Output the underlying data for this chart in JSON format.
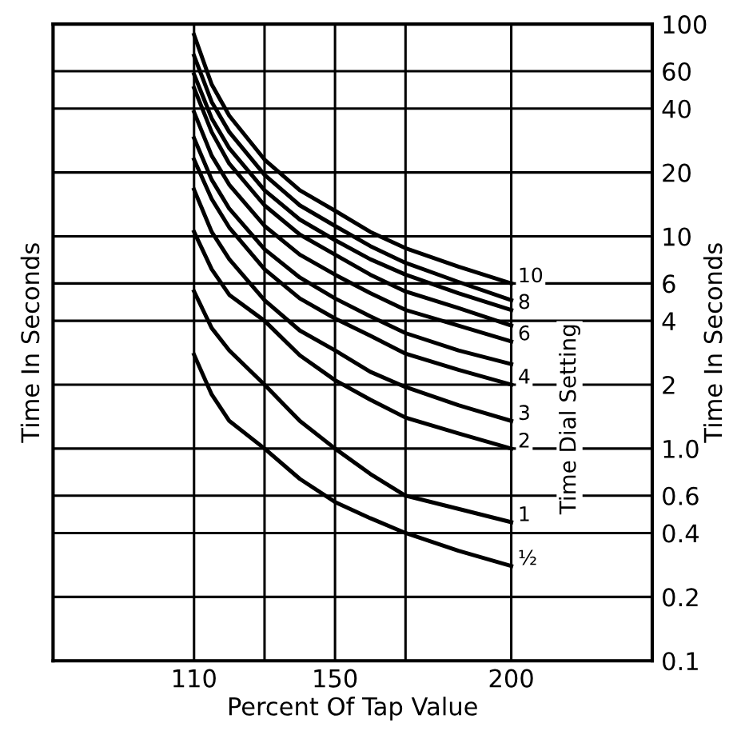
{
  "chart_data": {
    "type": "line",
    "xlabel": "Percent Of Tap Value",
    "ylabel": "Time In Seconds",
    "y2label": "Time In Seconds",
    "legend_title": "Time Dial Setting",
    "x": [
      110,
      115,
      120,
      130,
      140,
      150,
      160,
      170,
      185,
      200
    ],
    "xlim": [
      70,
      240
    ],
    "xticks": [
      110,
      {
        "value": 130,
        "label": null
      },
      150,
      {
        "value": 170,
        "label": null
      },
      200
    ],
    "log": "y",
    "ylim": [
      0.1,
      100
    ],
    "yticks": [
      0.1,
      0.2,
      0.4,
      0.6,
      {
        "value": 1,
        "label": "1.0"
      },
      2,
      4,
      6,
      10,
      20,
      40,
      60,
      100
    ],
    "grid": true,
    "marker": "none",
    "line_style": "solid",
    "series": [
      {
        "name": "10",
        "color": "#000000",
        "values": [
          89,
          52,
          37,
          23,
          16.5,
          13.2,
          10.5,
          8.8,
          7.2,
          6.0
        ]
      },
      {
        "color": "#000000",
        "values": [
          71,
          43,
          31,
          19.5,
          14,
          11.2,
          9,
          7.5,
          6.1,
          5.0
        ]
      },
      {
        "name": "8",
        "color": "#000000",
        "values": [
          58,
          36,
          26,
          16.5,
          12,
          9.6,
          7.8,
          6.6,
          5.4,
          4.5
        ]
      },
      {
        "color": "#000000",
        "values": [
          50,
          31,
          22,
          14,
          10.2,
          8.2,
          6.6,
          5.5,
          4.6,
          3.8
        ]
      },
      {
        "name": "6",
        "color": "#000000",
        "values": [
          38.5,
          24,
          17.5,
          11.2,
          8.2,
          6.6,
          5.4,
          4.5,
          3.8,
          3.2
        ]
      },
      {
        "color": "#000000",
        "values": [
          29,
          18.5,
          13.5,
          8.7,
          6.4,
          5.1,
          4.2,
          3.5,
          2.9,
          2.5
        ]
      },
      {
        "name": "4",
        "color": "#000000",
        "values": [
          23,
          15,
          11,
          7,
          5.1,
          4.1,
          3.4,
          2.8,
          2.35,
          2.0
        ]
      },
      {
        "name": "3",
        "color": "#000000",
        "values": [
          16.6,
          10.5,
          7.8,
          5.0,
          3.6,
          2.9,
          2.3,
          1.95,
          1.6,
          1.35
        ]
      },
      {
        "name": "2",
        "color": "#000000",
        "values": [
          10.5,
          7,
          5.3,
          4.0,
          2.75,
          2.1,
          1.7,
          1.4,
          1.18,
          1.0
        ]
      },
      {
        "name": "1",
        "color": "#000000",
        "values": [
          5.5,
          3.7,
          2.9,
          2.0,
          1.35,
          1.0,
          0.76,
          0.6,
          0.52,
          0.45
        ]
      },
      {
        "name": "½",
        "color": "#000000",
        "values": [
          2.77,
          1.8,
          1.35,
          1.0,
          0.72,
          0.56,
          0.47,
          0.4,
          0.33,
          0.28
        ]
      }
    ]
  }
}
